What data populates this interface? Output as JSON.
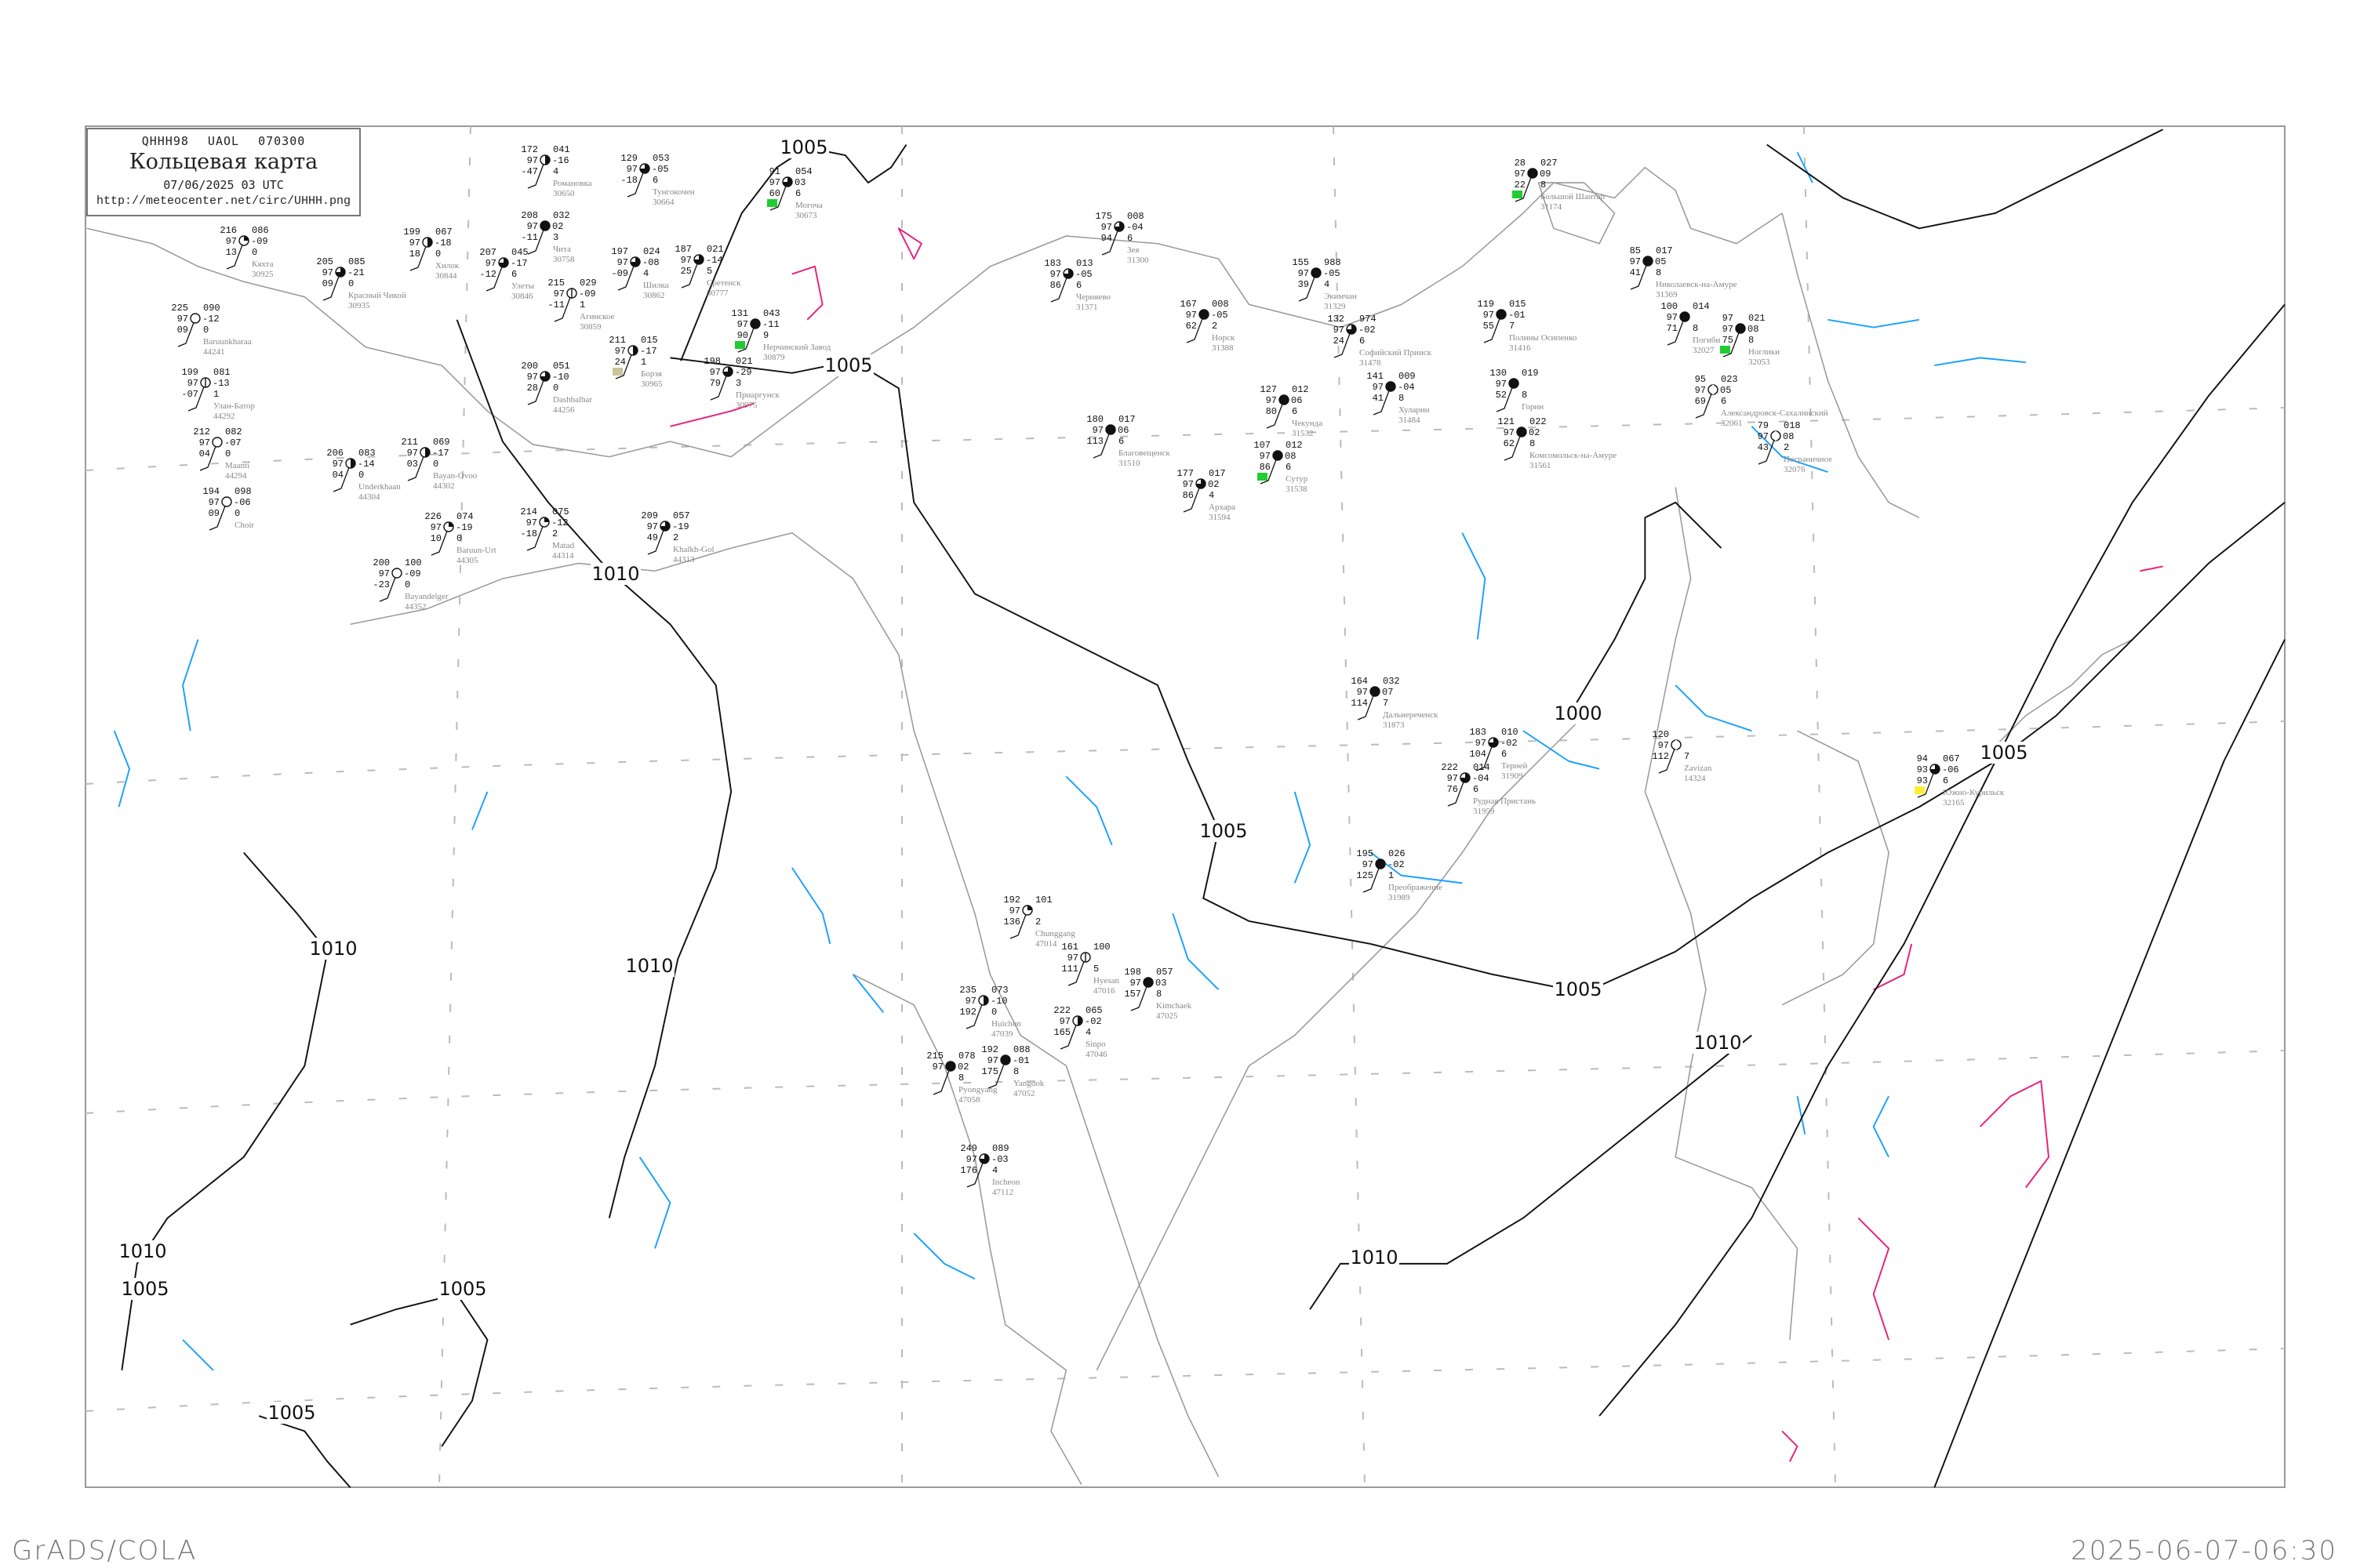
{
  "header": {
    "code_line": "QHHH98  UAOL  070300",
    "title": "Кольцевая карта",
    "datetime": "07/06/2025 03 UTC",
    "url": "http://meteocenter.net/circ/UHHH.png"
  },
  "footer": {
    "software": "GrADS/COLA",
    "timestamp": "2025-06-07-06:30"
  },
  "colors": {
    "isobar": "#111111",
    "coastline": "#9a9a9a",
    "blue_isoline": "#1aa0ff",
    "pink_isoline": "#e8207a",
    "marker_green": "#22cc33",
    "marker_khaki": "#c8c49a",
    "marker_yellow": "#ffee33"
  },
  "isobar_labels": [
    "1005",
    "1005",
    "1010",
    "1010",
    "1010",
    "1010",
    "1005",
    "1005",
    "1000",
    "1005",
    "1005",
    "1005",
    "1010",
    "1010",
    "1005"
  ],
  "stations": [
    {
      "name": "Кяхта",
      "id": "30925",
      "t": "216",
      "p": "086",
      "vv": "97",
      "tend": "-09",
      "td": "13",
      "r": "0",
      "cover": 2
    },
    {
      "name": "Хилок",
      "id": "30844",
      "t": "199",
      "p": "067",
      "vv": "97",
      "tend": "-18",
      "td": "18",
      "r": "0",
      "cover": 4
    },
    {
      "name": "Красный Чикой",
      "id": "30935",
      "t": "205",
      "p": "085",
      "vv": "97",
      "tend": "-21",
      "td": "09",
      "r": "0",
      "cover": 6
    },
    {
      "name": "Baruunkharaa",
      "id": "44241",
      "t": "225",
      "p": "090",
      "vv": "97",
      "tend": "-12",
      "td": "09",
      "r": "0",
      "cover": 0
    },
    {
      "name": "Улан-Батор",
      "id": "44292",
      "t": "199",
      "p": "081",
      "vv": "97",
      "tend": "-13",
      "td": "-07",
      "r": "1",
      "cover": 1
    },
    {
      "name": "Maanti",
      "id": "44294",
      "t": "212",
      "p": "082",
      "vv": "97",
      "tend": "-07",
      "td": "04",
      "r": "0",
      "cover": 0
    },
    {
      "name": "Choir",
      "id": "",
      "t": "194",
      "p": "098",
      "vv": "97",
      "tend": "-06",
      "td": "09",
      "r": "0",
      "cover": 0
    },
    {
      "name": "Underkhaan",
      "id": "44304",
      "t": "206",
      "p": "083",
      "vv": "97",
      "tend": "-14",
      "td": "04",
      "r": "0",
      "cover": 4
    },
    {
      "name": "Bayan-Ovoo",
      "id": "44302",
      "t": "211",
      "p": "069",
      "vv": "97",
      "tend": "-17",
      "td": "03",
      "r": "0",
      "cover": 4
    },
    {
      "name": "Романовка",
      "id": "30650",
      "t": "172",
      "p": "041",
      "vv": "97",
      "tend": "-16",
      "td": "-47",
      "r": "4",
      "cover": 4
    },
    {
      "name": "Тунгокочен",
      "id": "30664",
      "t": "129",
      "p": "053",
      "vv": "97",
      "tend": "-05",
      "td": "-18",
      "r": "6",
      "cover": 6
    },
    {
      "name": "Могоча",
      "id": "30673",
      "t": "91",
      "p": "054",
      "vv": "97",
      "tend": "03",
      "td": "60",
      "r": "6",
      "cover": 6,
      "marker": "green"
    },
    {
      "name": "Чита",
      "id": "30758",
      "t": "208",
      "p": "032",
      "vv": "97",
      "tend": "02",
      "td": "-11",
      "r": "3",
      "cover": 8
    },
    {
      "name": "Улеты",
      "id": "30846",
      "t": "207",
      "p": "045",
      "vv": "97",
      "tend": "-17",
      "td": "-12",
      "r": "6",
      "cover": 6
    },
    {
      "name": "Агинское",
      "id": "30859",
      "t": "215",
      "p": "029",
      "vv": "97",
      "tend": "-09",
      "td": "-11",
      "r": "1",
      "cover": 1
    },
    {
      "name": "Шилка",
      "id": "30862",
      "t": "197",
      "p": "024",
      "vv": "97",
      "tend": "-08",
      "td": "-09",
      "r": "4",
      "cover": 6
    },
    {
      "name": "Сретенск",
      "id": "30777",
      "t": "187",
      "p": "021",
      "vv": "97",
      "tend": "-14",
      "td": "25",
      "r": "5",
      "cover": 6
    },
    {
      "name": "Нерчинский Завод",
      "id": "30879",
      "t": "131",
      "p": "043",
      "vv": "97",
      "tend": "-11",
      "td": "90",
      "r": "9",
      "cover": 8,
      "marker": "green"
    },
    {
      "name": "Борзя",
      "id": "30965",
      "t": "211",
      "p": "015",
      "vv": "97",
      "tend": "-17",
      "td": "24",
      "r": "1",
      "cover": 4,
      "marker": "khaki"
    },
    {
      "name": "Приаргунск",
      "id": "30975",
      "t": "198",
      "p": "021",
      "vv": "97",
      "tend": "-29",
      "td": "79",
      "r": "3",
      "cover": 6
    },
    {
      "name": "Dashbalbar",
      "id": "44256",
      "t": "200",
      "p": "051",
      "vv": "97",
      "tend": "-10",
      "td": "28",
      "r": "0",
      "cover": 6
    },
    {
      "name": "Зея",
      "id": "31300",
      "t": "175",
      "p": "008",
      "vv": "97",
      "tend": "-04",
      "td": "94",
      "r": "6",
      "cover": 6
    },
    {
      "name": "Черняево",
      "id": "31371",
      "t": "183",
      "p": "013",
      "vv": "97",
      "tend": "-05",
      "td": "86",
      "r": "6",
      "cover": 6
    },
    {
      "name": "Норск",
      "id": "31388",
      "t": "167",
      "p": "008",
      "vv": "97",
      "tend": "-05",
      "td": "62",
      "r": "2",
      "cover": 8
    },
    {
      "name": "Экимчан",
      "id": "31329",
      "t": "155",
      "p": "988",
      "vv": "97",
      "tend": "-05",
      "td": "39",
      "r": "4",
      "cover": 8
    },
    {
      "name": "Софийский Прииск",
      "id": "31478",
      "t": "132",
      "p": "974",
      "vv": "97",
      "tend": "-02",
      "td": "24",
      "r": "6",
      "cover": 6
    },
    {
      "name": "Хуларин",
      "id": "31484",
      "t": "141",
      "p": "009",
      "vv": "97",
      "tend": "-04",
      "td": "41",
      "r": "8",
      "cover": 8
    },
    {
      "name": "Чекунда",
      "id": "31532",
      "t": "127",
      "p": "012",
      "vv": "97",
      "tend": "06",
      "td": "80",
      "r": "6",
      "cover": 8
    },
    {
      "name": "Сутур",
      "id": "31538",
      "t": "107",
      "p": "012",
      "vv": "97",
      "tend": "08",
      "td": "86",
      "r": "6",
      "cover": 8,
      "marker": "green"
    },
    {
      "name": "Благовещенск",
      "id": "31510",
      "t": "180",
      "p": "017",
      "vv": "97",
      "tend": "06",
      "td": "113",
      "r": "6",
      "cover": 8
    },
    {
      "name": "Архара",
      "id": "31594",
      "t": "177",
      "p": "017",
      "vv": "97",
      "tend": "02",
      "td": "86",
      "r": "4",
      "cover": 6
    },
    {
      "name": "Большой Шантар",
      "id": "31174",
      "t": "28",
      "p": "027",
      "vv": "97",
      "tend": "09",
      "td": "22",
      "r": "8",
      "cover": 8,
      "marker": "green"
    },
    {
      "name": "Николаевск-на-Амуре",
      "id": "31369",
      "t": "85",
      "p": "017",
      "vv": "97",
      "tend": "05",
      "td": "41",
      "r": "8",
      "cover": 8
    },
    {
      "name": "Полины Осипенко",
      "id": "31416",
      "t": "119",
      "p": "015",
      "vv": "97",
      "tend": "-01",
      "td": "55",
      "r": "7",
      "cover": 8
    },
    {
      "name": "Погиби",
      "id": "32027",
      "t": "100",
      "p": "014",
      "vv": "97",
      "tend": "",
      "td": "71",
      "r": "8",
      "cover": 8
    },
    {
      "name": "Ноглики",
      "id": "32053",
      "t": "97",
      "p": "021",
      "vv": "97",
      "tend": "08",
      "td": "75",
      "r": "8",
      "cover": 8,
      "marker": "green"
    },
    {
      "name": "Горин",
      "id": "",
      "t": "130",
      "p": "019",
      "vv": "97",
      "tend": "",
      "td": "52",
      "r": "8",
      "cover": 8
    },
    {
      "name": "Александровск-Сахалинский",
      "id": "32061",
      "t": "95",
      "p": "023",
      "vv": "97",
      "tend": "05",
      "td": "69",
      "r": "6",
      "cover": 9
    },
    {
      "name": "Комсомольск-на-Амуре",
      "id": "31561",
      "t": "121",
      "p": "022",
      "vv": "97",
      "tend": "02",
      "td": "62",
      "r": "8",
      "cover": 8
    },
    {
      "name": "Пограничное",
      "id": "32076",
      "t": "79",
      "p": "018",
      "vv": "97",
      "tend": "08",
      "td": "43",
      "r": "2",
      "cover": 9
    },
    {
      "name": "Дальнереченск",
      "id": "31873",
      "t": "164",
      "p": "032",
      "vv": "97",
      "tend": "07",
      "td": "114",
      "r": "7",
      "cover": 8
    },
    {
      "name": "Терней",
      "id": "31909",
      "t": "183",
      "p": "010",
      "vv": "97",
      "tend": "-02",
      "td": "104",
      "r": "6",
      "cover": 6
    },
    {
      "name": "Рудная Пристань",
      "id": "31959",
      "t": "222",
      "p": "014",
      "vv": "97",
      "tend": "-04",
      "td": "76",
      "r": "6",
      "cover": 6
    },
    {
      "name": "Преображение",
      "id": "31989",
      "t": "195",
      "p": "026",
      "vv": "97",
      "tend": "-02",
      "td": "125",
      "r": "1",
      "cover": 8
    },
    {
      "name": "Zavizan",
      "id": "14324",
      "t": "120",
      "p": "",
      "vv": "97",
      "tend": "",
      "td": "112",
      "r": "7",
      "cover": 9
    },
    {
      "name": "Южно-Курильск",
      "id": "32165",
      "t": "94",
      "p": "067",
      "vv": "93",
      "tend": "-06",
      "td": "93",
      "r": "6",
      "cover": 6,
      "marker": "yellow"
    },
    {
      "name": "Chunggang",
      "id": "47014",
      "t": "192",
      "p": "101",
      "vv": "97",
      "tend": "",
      "td": "136",
      "r": "2",
      "cover": 2
    },
    {
      "name": "Hyesan",
      "id": "47016",
      "t": "161",
      "p": "100",
      "vv": "97",
      "tend": "",
      "td": "111",
      "r": "5",
      "cover": 1
    },
    {
      "name": "Kimchaek",
      "id": "47025",
      "t": "198",
      "p": "057",
      "vv": "97",
      "tend": "03",
      "td": "157",
      "r": "8",
      "cover": 8
    },
    {
      "name": "Huichon",
      "id": "47039",
      "t": "235",
      "p": "073",
      "vv": "97",
      "tend": "-10",
      "td": "192",
      "r": "0",
      "cover": 4
    },
    {
      "name": "Sinpo",
      "id": "47046",
      "t": "222",
      "p": "065",
      "vv": "97",
      "tend": "-02",
      "td": "165",
      "r": "4",
      "cover": 4
    },
    {
      "name": "Yangdok",
      "id": "47052",
      "t": "192",
      "p": "088",
      "vv": "97",
      "tend": "-01",
      "td": "175",
      "r": "8",
      "cover": 8
    },
    {
      "name": "Pyongyang",
      "id": "47058",
      "t": "215",
      "p": "078",
      "vv": "97",
      "tend": "02",
      "td": "",
      "r": "8",
      "cover": 8
    },
    {
      "name": "Incheon",
      "id": "47112",
      "t": "249",
      "p": "089",
      "vv": "97",
      "tend": "-03",
      "td": "176",
      "r": "4",
      "cover": 6
    },
    {
      "name": "Matad",
      "id": "44314",
      "t": "214",
      "p": "075",
      "vv": "97",
      "tend": "-12",
      "td": "-18",
      "r": "2",
      "cover": 2
    },
    {
      "name": "Khalkh-Gol",
      "id": "44313",
      "t": "209",
      "p": "057",
      "vv": "97",
      "tend": "-19",
      "td": "49",
      "r": "2",
      "cover": 6
    },
    {
      "name": "Baruun-Urt",
      "id": "44305",
      "t": "226",
      "p": "074",
      "vv": "97",
      "tend": "-19",
      "td": "10",
      "r": "0",
      "cover": 2
    },
    {
      "name": "Bayandelger",
      "id": "44352",
      "t": "200",
      "p": "100",
      "vv": "97",
      "tend": "-09",
      "td": "-23",
      "r": "0",
      "cover": 0
    }
  ]
}
